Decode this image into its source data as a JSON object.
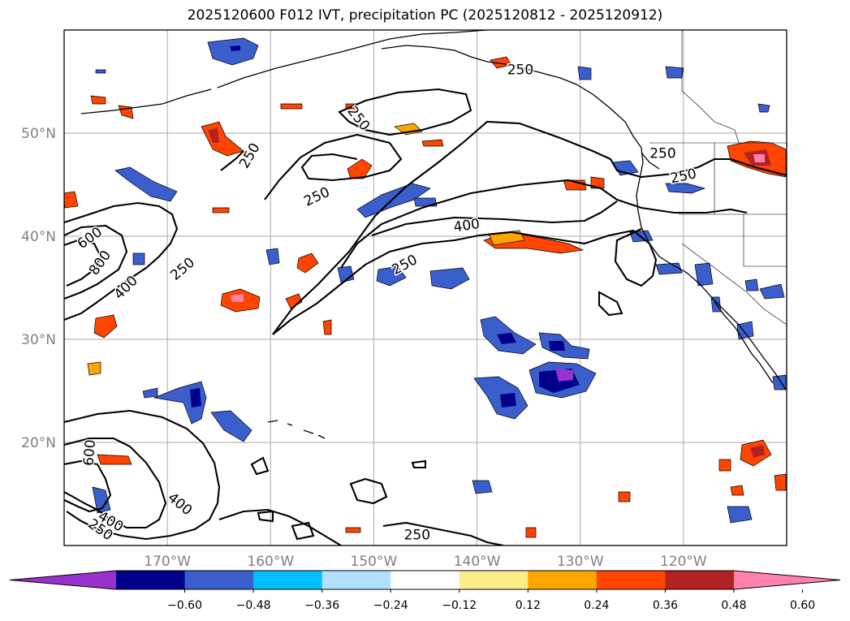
{
  "title": "2025120600 F012 IVT, precipitation PC (2025120812 - 2025120912)",
  "map": {
    "lon_range": [
      -180,
      -110
    ],
    "lat_range": [
      10,
      60
    ],
    "lat_ticks": [
      {
        "value": 50,
        "label": "50°N"
      },
      {
        "value": 40,
        "label": "40°N"
      },
      {
        "value": 30,
        "label": "30°N"
      },
      {
        "value": 20,
        "label": "20°N"
      }
    ],
    "lon_ticks": [
      {
        "value": -170,
        "label": "170°W"
      },
      {
        "value": -160,
        "label": "160°W"
      },
      {
        "value": -150,
        "label": "150°W"
      },
      {
        "value": -140,
        "label": "140°W"
      },
      {
        "value": -130,
        "label": "130°W"
      },
      {
        "value": -120,
        "label": "120°W"
      }
    ],
    "contour_labels": [
      {
        "text": "250",
        "lon": -135.8,
        "lat": 56.1,
        "rot": 0
      },
      {
        "text": "250",
        "lon": -151.5,
        "lat": 51.4,
        "rot": 52
      },
      {
        "text": "250",
        "lon": -162.0,
        "lat": 47.8,
        "rot": -60
      },
      {
        "text": "250",
        "lon": -155.5,
        "lat": 43.8,
        "rot": -25
      },
      {
        "text": "400",
        "lon": -141.0,
        "lat": 41.0,
        "rot": -8
      },
      {
        "text": "250",
        "lon": -147.0,
        "lat": 37.2,
        "rot": -28
      },
      {
        "text": "250",
        "lon": -122.0,
        "lat": 48.0,
        "rot": 0
      },
      {
        "text": "250",
        "lon": -120.0,
        "lat": 45.8,
        "rot": -12
      },
      {
        "text": "600",
        "lon": -177.5,
        "lat": 39.8,
        "rot": -35
      },
      {
        "text": "800",
        "lon": -176.5,
        "lat": 37.4,
        "rot": -55
      },
      {
        "text": "400",
        "lon": -174.0,
        "lat": 35.0,
        "rot": -45
      },
      {
        "text": "250",
        "lon": -168.5,
        "lat": 36.8,
        "rot": -40
      },
      {
        "text": "600",
        "lon": -177.5,
        "lat": 19.0,
        "rot": -85
      },
      {
        "text": "400",
        "lon": -168.8,
        "lat": 14.0,
        "rot": 40
      },
      {
        "text": "250",
        "lon": -176.5,
        "lat": 11.5,
        "rot": 35
      },
      {
        "text": "400",
        "lon": -175.5,
        "lat": 12.3,
        "rot": 30
      },
      {
        "text": "250",
        "lon": -145.8,
        "lat": 11.0,
        "rot": 0
      }
    ]
  },
  "colorbar": {
    "colors": [
      "#9932cc",
      "#00008b",
      "#3a5fcd",
      "#00bfff",
      "#b0e2ff",
      "#ffffff",
      "#ffec8b",
      "#ffa500",
      "#ff4500",
      "#b22222",
      "#ff82ab"
    ],
    "tick_labels": [
      "−0.60",
      "−0.48",
      "−0.36",
      "−0.24",
      "−0.12",
      "0.12",
      "0.24",
      "0.36",
      "0.48",
      "0.60"
    ]
  }
}
